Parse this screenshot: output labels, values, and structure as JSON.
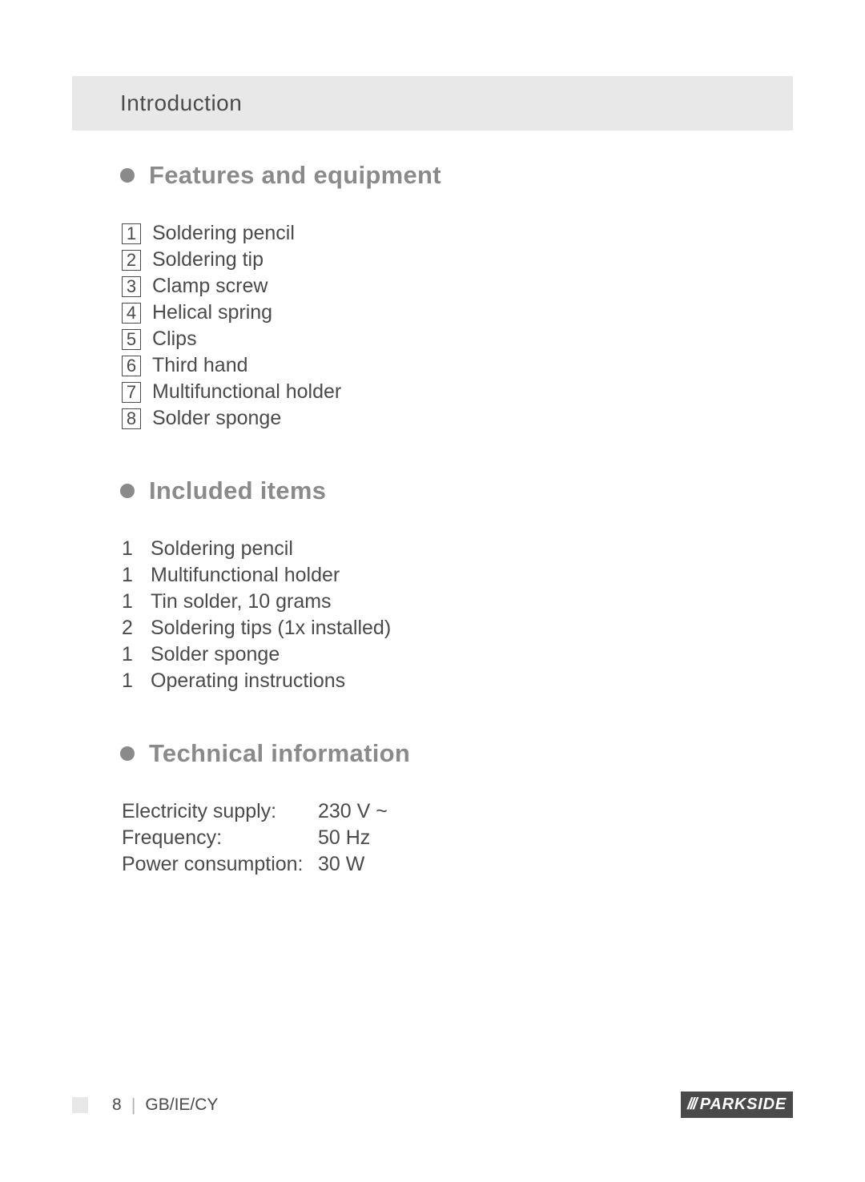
{
  "header": {
    "title": "Introduction"
  },
  "sections": {
    "features": {
      "title": "Features and equipment",
      "items": [
        {
          "num": "1",
          "label": "Soldering pencil"
        },
        {
          "num": "2",
          "label": "Soldering tip"
        },
        {
          "num": "3",
          "label": "Clamp screw"
        },
        {
          "num": "4",
          "label": "Helical spring"
        },
        {
          "num": "5",
          "label": "Clips"
        },
        {
          "num": "6",
          "label": "Third hand"
        },
        {
          "num": "7",
          "label": "Multifunctional holder"
        },
        {
          "num": "8",
          "label": "Solder sponge"
        }
      ]
    },
    "included": {
      "title": "Included items",
      "items": [
        {
          "count": "1",
          "label": "Soldering pencil"
        },
        {
          "count": "1",
          "label": "Multifunctional holder"
        },
        {
          "count": "1",
          "label": "Tin solder, 10 grams"
        },
        {
          "count": "2",
          "label": "Soldering tips (1x installed)"
        },
        {
          "count": "1",
          "label": "Solder sponge"
        },
        {
          "count": "1",
          "label": "Operating instructions"
        }
      ]
    },
    "technical": {
      "title": "Technical information",
      "rows": [
        {
          "label": "Electricity supply:",
          "value": "230 V ~"
        },
        {
          "label": "Frequency:",
          "value": "50 Hz"
        },
        {
          "label": "Power consumption:",
          "value": "30 W"
        }
      ]
    }
  },
  "footer": {
    "page_number": "8",
    "region": "GB/IE/CY",
    "brand": "PARKSIDE",
    "brand_prefix": "///"
  },
  "colors": {
    "background": "#ffffff",
    "header_bg": "#e8e8e8",
    "text_primary": "#4a4a4a",
    "text_secondary": "#8a8a8a",
    "badge_bg": "#4a4a4a",
    "badge_text": "#ffffff"
  }
}
